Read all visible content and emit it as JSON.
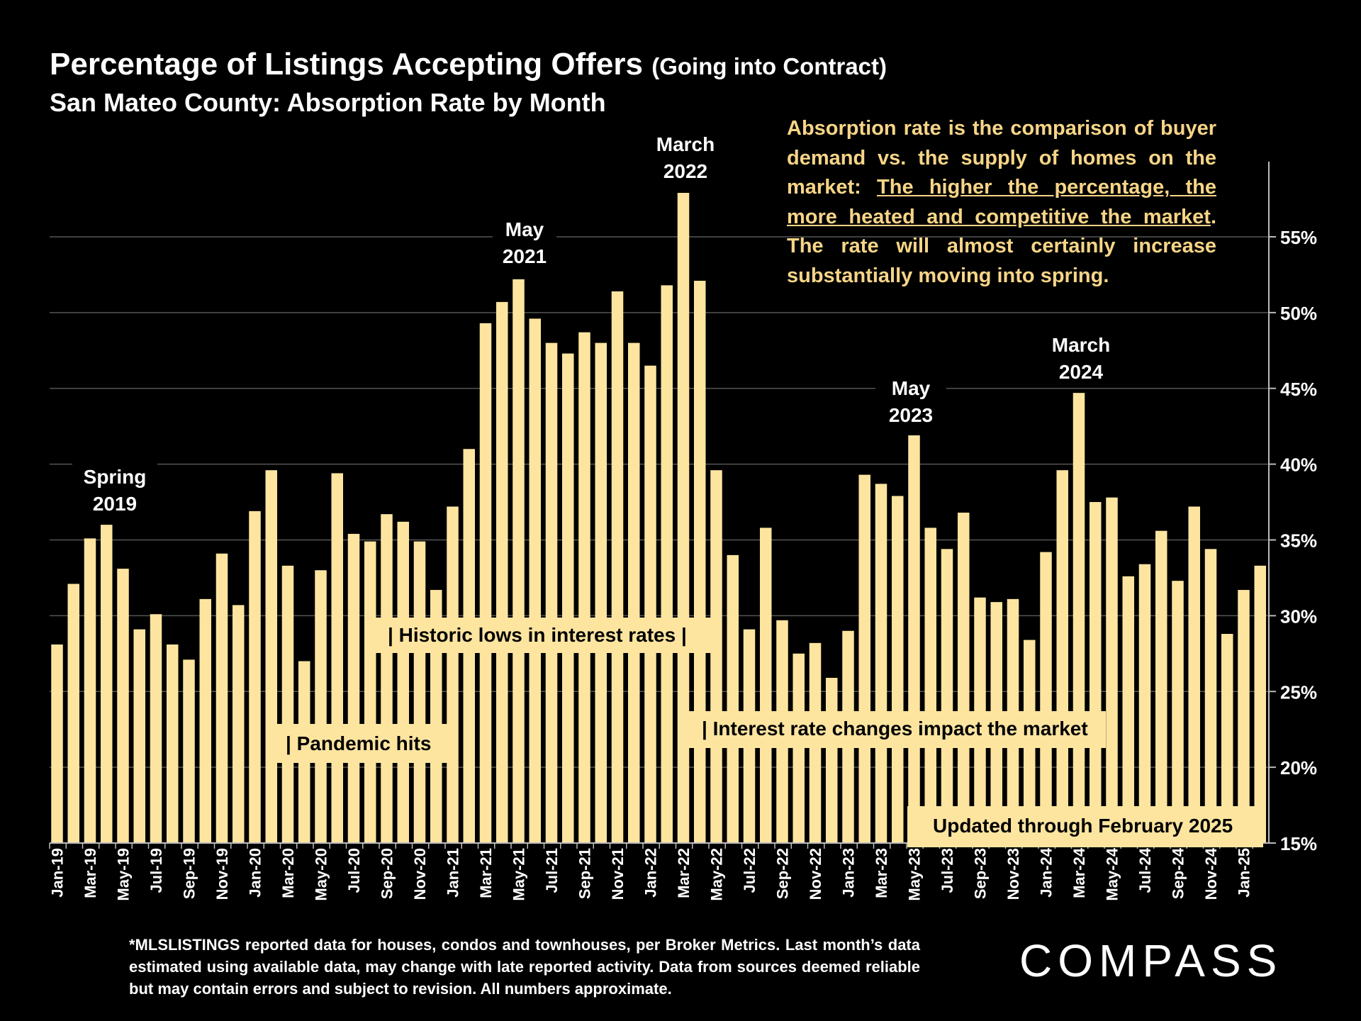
{
  "header": {
    "title": "Percentage of Listings Accepting Offers",
    "title_suffix": "(Going into Contract)",
    "subtitle": "San Mateo County:  Absorption Rate by Month"
  },
  "note": {
    "part1": "Absorption rate is the comparison of buyer demand vs. the supply of homes on the market: ",
    "underlined": "The higher the percentage, the more heated and competitive the market",
    "part2": ".  The rate will almost certainly increase substantially moving into spring."
  },
  "footnote": "*MLSLISTINGS reported data for houses, condos and townhouses, per Broker Metrics. Last month’s data estimated using available data, may change with late reported activity. Data from sources deemed reliable but may contain errors and subject to revision. All numbers approximate.",
  "logo": "COMPASS",
  "colors": {
    "bar": "#fde5a0",
    "background": "#000000",
    "note_text": "#f7d587",
    "grid": "#555555"
  },
  "chart_data": {
    "type": "bar",
    "title": "Percentage of Listings Accepting Offers",
    "ylim": [
      15,
      59
    ],
    "yticks": [
      "15%",
      "20%",
      "25%",
      "30%",
      "35%",
      "40%",
      "45%",
      "50%",
      "55%"
    ],
    "ytick_values": [
      15,
      20,
      25,
      30,
      35,
      40,
      45,
      50,
      55
    ],
    "y_axis_side": "right",
    "grid": true,
    "categories": [
      "Jan-19",
      "Feb-19",
      "Mar-19",
      "Apr-19",
      "May-19",
      "Jun-19",
      "Jul-19",
      "Aug-19",
      "Sep-19",
      "Oct-19",
      "Nov-19",
      "Dec-19",
      "Jan-20",
      "Feb-20",
      "Mar-20",
      "Apr-20",
      "May-20",
      "Jun-20",
      "Jul-20",
      "Aug-20",
      "Sep-20",
      "Oct-20",
      "Nov-20",
      "Dec-20",
      "Jan-21",
      "Feb-21",
      "Mar-21",
      "Apr-21",
      "May-21",
      "Jun-21",
      "Jul-21",
      "Aug-21",
      "Sep-21",
      "Oct-21",
      "Nov-21",
      "Dec-21",
      "Jan-22",
      "Feb-22",
      "Mar-22",
      "Apr-22",
      "May-22",
      "Jun-22",
      "Jul-22",
      "Aug-22",
      "Sep-22",
      "Oct-22",
      "Nov-22",
      "Dec-22",
      "Jan-23",
      "Feb-23",
      "Mar-23",
      "Apr-23",
      "May-23",
      "Jun-23",
      "Jul-23",
      "Aug-23",
      "Sep-23",
      "Oct-23",
      "Nov-23",
      "Dec-23",
      "Jan-24",
      "Feb-24",
      "Mar-24",
      "Apr-24",
      "May-24",
      "Jun-24",
      "Jul-24",
      "Aug-24",
      "Sep-24",
      "Oct-24",
      "Nov-24",
      "Dec-24",
      "Jan-25",
      "Feb-25"
    ],
    "x_tick_labels": [
      "Jan-19",
      "Mar-19",
      "May-19",
      "Jul-19",
      "Sep-19",
      "Nov-19",
      "Jan-20",
      "Mar-20",
      "May-20",
      "Jul-20",
      "Sep-20",
      "Nov-20",
      "Jan-21",
      "Mar-21",
      "May-21",
      "Jul-21",
      "Sep-21",
      "Nov-21",
      "Jan-22",
      "Mar-22",
      "May-22",
      "Jul-22",
      "Sep-22",
      "Nov-22",
      "Jan-23",
      "Mar-23",
      "May-23",
      "Jul-23",
      "Sep-23",
      "Nov-23",
      "Jan-24",
      "Mar-24",
      "May-24",
      "Jul-24",
      "Sep-24",
      "Nov-24",
      "Jan-25"
    ],
    "values": [
      28.1,
      32.1,
      35.1,
      36.0,
      33.1,
      29.1,
      30.1,
      28.1,
      27.1,
      31.1,
      34.1,
      30.7,
      36.9,
      39.6,
      33.3,
      27.0,
      33.0,
      39.4,
      35.4,
      34.9,
      36.7,
      36.2,
      34.9,
      31.7,
      37.2,
      41.0,
      49.3,
      50.7,
      52.2,
      49.6,
      48.0,
      47.3,
      48.7,
      48.0,
      51.4,
      48.0,
      46.5,
      51.8,
      57.9,
      52.1,
      39.6,
      34.0,
      29.1,
      35.8,
      29.7,
      27.5,
      28.2,
      25.9,
      29.0,
      39.3,
      38.7,
      37.9,
      41.9,
      35.8,
      34.4,
      36.8,
      31.2,
      30.9,
      31.1,
      28.4,
      34.2,
      39.6,
      44.7,
      37.5,
      37.8,
      32.6,
      33.4,
      35.6,
      32.3,
      37.2,
      34.4,
      28.8,
      31.7,
      33.3
    ],
    "peak_labels": [
      {
        "line1": "Spring",
        "line2": "2019",
        "category": "Apr-19"
      },
      {
        "line1": "May",
        "line2": "2021",
        "category": "May-21"
      },
      {
        "line1": "March",
        "line2": "2022",
        "category": "Mar-22"
      },
      {
        "line1": "May",
        "line2": "2023",
        "category": "May-23"
      },
      {
        "line1": "March",
        "line2": "2024",
        "category": "Mar-24"
      }
    ],
    "annotations": [
      {
        "text": "|  Historic lows in interest rates  |"
      },
      {
        "text": "| Pandemic hits"
      },
      {
        "text": "| Interest rate changes impact the market"
      },
      {
        "text": "Updated through February 2025"
      }
    ]
  }
}
